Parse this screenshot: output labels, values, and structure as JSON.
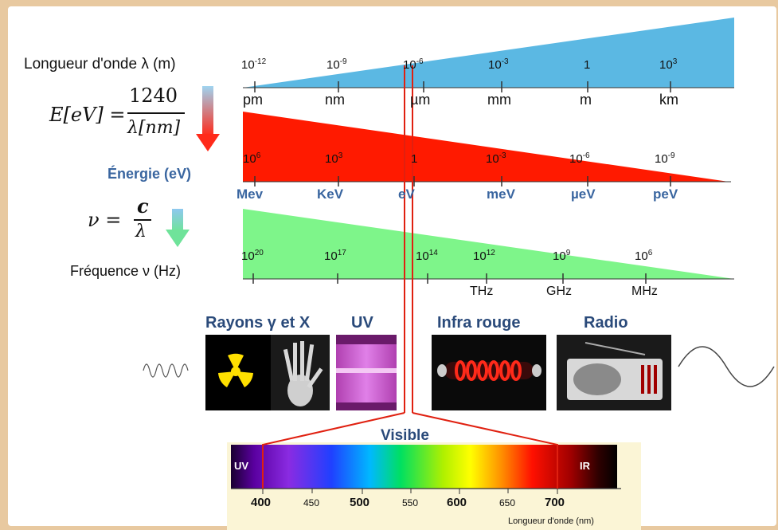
{
  "colors": {
    "wavelength_band": "#5bb8e3",
    "energy_band": "#ff1a00",
    "frequency_band": "#7ef58a",
    "red_guide": "#e02010",
    "axis_title": "#2a4a7a",
    "spectrum_bg": "#fbf5d6"
  },
  "wavelength": {
    "title": "Longueur d'onde λ (m)",
    "powers": [
      {
        "base": "10",
        "exp": "-12"
      },
      {
        "base": "10",
        "exp": "-9"
      },
      {
        "base": "10",
        "exp": "-6"
      },
      {
        "base": "10",
        "exp": "-3"
      },
      {
        "base": "1",
        "exp": ""
      },
      {
        "base": "10",
        "exp": "3"
      }
    ],
    "units": [
      "pm",
      "nm",
      "µm",
      "mm",
      "m",
      "km"
    ]
  },
  "energy": {
    "formula_lhs": "E[eV] =",
    "formula_num": "1240",
    "formula_den": "λ[nm]",
    "title": "Énergie (eV)",
    "powers": [
      {
        "base": "10",
        "exp": "6"
      },
      {
        "base": "10",
        "exp": "3"
      },
      {
        "base": "1",
        "exp": ""
      },
      {
        "base": "10",
        "exp": "-3"
      },
      {
        "base": "10",
        "exp": "-6"
      },
      {
        "base": "10",
        "exp": "-9"
      }
    ],
    "units": [
      "Mev",
      "KeV",
      "eV",
      "meV",
      "µeV",
      "peV"
    ]
  },
  "frequency": {
    "formula_lhs": "ν =",
    "formula_num": "c",
    "formula_den": "λ",
    "title": "Fréquence ν (Hz)",
    "powers": [
      {
        "base": "10",
        "exp": "20"
      },
      {
        "base": "10",
        "exp": "17"
      },
      {
        "base": "10",
        "exp": "14"
      },
      {
        "base": "10",
        "exp": "12"
      },
      {
        "base": "10",
        "exp": "9"
      },
      {
        "base": "10",
        "exp": "6"
      }
    ],
    "units": [
      "THz",
      "GHz",
      "MHz"
    ]
  },
  "categories": {
    "gamma_x": "Rayons γ et X",
    "uv": "UV",
    "infrared": "Infra rouge",
    "radio": "Radio"
  },
  "visible": {
    "title": "Visible",
    "uv_label": "UV",
    "ir_label": "IR",
    "ticks": [
      "400",
      "450",
      "500",
      "550",
      "600",
      "650",
      "700"
    ],
    "axis_label": "Longueur d'onde (nm)"
  }
}
